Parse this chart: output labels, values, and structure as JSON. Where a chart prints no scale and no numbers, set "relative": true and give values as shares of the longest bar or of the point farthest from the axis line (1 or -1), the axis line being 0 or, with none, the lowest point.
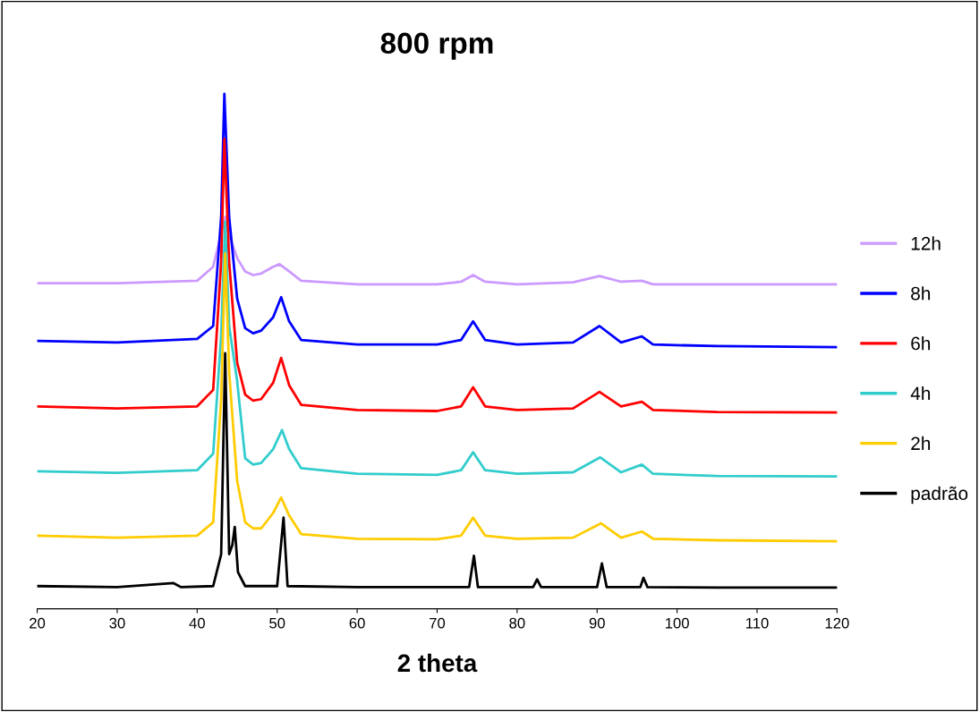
{
  "chart_data": {
    "type": "line",
    "title": "800 rpm",
    "xlabel": "2 theta",
    "relative": true,
    "xlim": [
      20,
      120
    ],
    "xticks": [
      20,
      30,
      40,
      50,
      60,
      70,
      80,
      90,
      100,
      110,
      120
    ],
    "grid": false,
    "legend": "right",
    "marker": "none",
    "line_style": "solid",
    "series": [
      {
        "name": "12h",
        "color": "#cc99ff",
        "x": [
          20,
          30,
          40,
          42,
          43.5,
          44,
          45,
          46,
          47,
          48,
          49.5,
          50.3,
          51.5,
          53,
          60,
          70,
          73,
          74.5,
          76,
          80,
          87,
          90.3,
          93,
          95.6,
          97,
          105,
          120
        ],
        "values": [
          0.632,
          0.632,
          0.637,
          0.664,
          0.761,
          0.726,
          0.681,
          0.655,
          0.648,
          0.651,
          0.664,
          0.669,
          0.655,
          0.637,
          0.63,
          0.63,
          0.635,
          0.648,
          0.635,
          0.63,
          0.634,
          0.646,
          0.635,
          0.637,
          0.63,
          0.63,
          0.63
        ]
      },
      {
        "name": "8h",
        "color": "#0000ff",
        "x": [
          20,
          30,
          40,
          42,
          43,
          43.4,
          44,
          45,
          46,
          47,
          48,
          49.5,
          50.5,
          51.5,
          53,
          60,
          70,
          73,
          74.5,
          76,
          80,
          87,
          90.3,
          93,
          95.6,
          97,
          105,
          120
        ],
        "values": [
          0.52,
          0.517,
          0.524,
          0.549,
          0.761,
          1.0,
          0.761,
          0.602,
          0.545,
          0.535,
          0.54,
          0.566,
          0.605,
          0.558,
          0.522,
          0.513,
          0.513,
          0.522,
          0.558,
          0.522,
          0.513,
          0.517,
          0.549,
          0.517,
          0.529,
          0.513,
          0.51,
          0.508
        ]
      },
      {
        "name": "6h",
        "color": "#ff0000",
        "x": [
          20,
          30,
          40,
          42,
          43,
          43.4,
          44,
          45,
          46,
          47,
          48,
          49.5,
          50.5,
          51.5,
          53,
          60,
          70,
          73,
          74.5,
          76,
          80,
          87,
          90.3,
          93,
          95.6,
          97,
          105,
          120
        ],
        "values": [
          0.393,
          0.389,
          0.393,
          0.425,
          0.673,
          0.912,
          0.673,
          0.478,
          0.416,
          0.404,
          0.407,
          0.439,
          0.487,
          0.434,
          0.396,
          0.386,
          0.384,
          0.393,
          0.43,
          0.393,
          0.386,
          0.389,
          0.421,
          0.393,
          0.402,
          0.386,
          0.382,
          0.381
        ]
      },
      {
        "name": "4h",
        "color": "#33cccc",
        "x": [
          20,
          30,
          40,
          42,
          43,
          43.5,
          44,
          45,
          46,
          47,
          48,
          49.5,
          50.6,
          51.5,
          53,
          60,
          70,
          73,
          74.5,
          76,
          80,
          87,
          90.4,
          93,
          95.6,
          97,
          105,
          120
        ],
        "values": [
          0.267,
          0.264,
          0.269,
          0.301,
          0.531,
          0.752,
          0.549,
          0.442,
          0.292,
          0.28,
          0.283,
          0.31,
          0.347,
          0.31,
          0.273,
          0.262,
          0.26,
          0.269,
          0.304,
          0.269,
          0.262,
          0.265,
          0.294,
          0.265,
          0.28,
          0.262,
          0.258,
          0.257
        ]
      },
      {
        "name": "2h",
        "color": "#ffcc00",
        "x": [
          20,
          30,
          40,
          42,
          43,
          43.5,
          44,
          45,
          46,
          47,
          48,
          49.5,
          50.5,
          51.5,
          53,
          60,
          70,
          73,
          74.5,
          76,
          80,
          87,
          90.5,
          93,
          95.6,
          97,
          105,
          120
        ],
        "values": [
          0.142,
          0.138,
          0.142,
          0.168,
          0.407,
          0.69,
          0.46,
          0.248,
          0.168,
          0.156,
          0.156,
          0.186,
          0.216,
          0.181,
          0.145,
          0.136,
          0.135,
          0.142,
          0.177,
          0.142,
          0.136,
          0.138,
          0.166,
          0.138,
          0.15,
          0.136,
          0.133,
          0.131
        ]
      },
      {
        "name": "padrão",
        "color": "#000000",
        "x": [
          20,
          30,
          37,
          38,
          42,
          43,
          43.5,
          44,
          44.4,
          44.7,
          45.1,
          46,
          50,
          50.8,
          51.3,
          60,
          74,
          74.6,
          75.1,
          82,
          82.5,
          83,
          90,
          90.6,
          91.2,
          95.4,
          95.8,
          96.3,
          105,
          120
        ],
        "values": [
          0.044,
          0.042,
          0.05,
          0.042,
          0.044,
          0.106,
          0.496,
          0.106,
          0.124,
          0.159,
          0.071,
          0.044,
          0.044,
          0.177,
          0.044,
          0.042,
          0.042,
          0.103,
          0.042,
          0.042,
          0.057,
          0.042,
          0.042,
          0.088,
          0.042,
          0.042,
          0.06,
          0.042,
          0.041,
          0.041
        ]
      }
    ]
  }
}
